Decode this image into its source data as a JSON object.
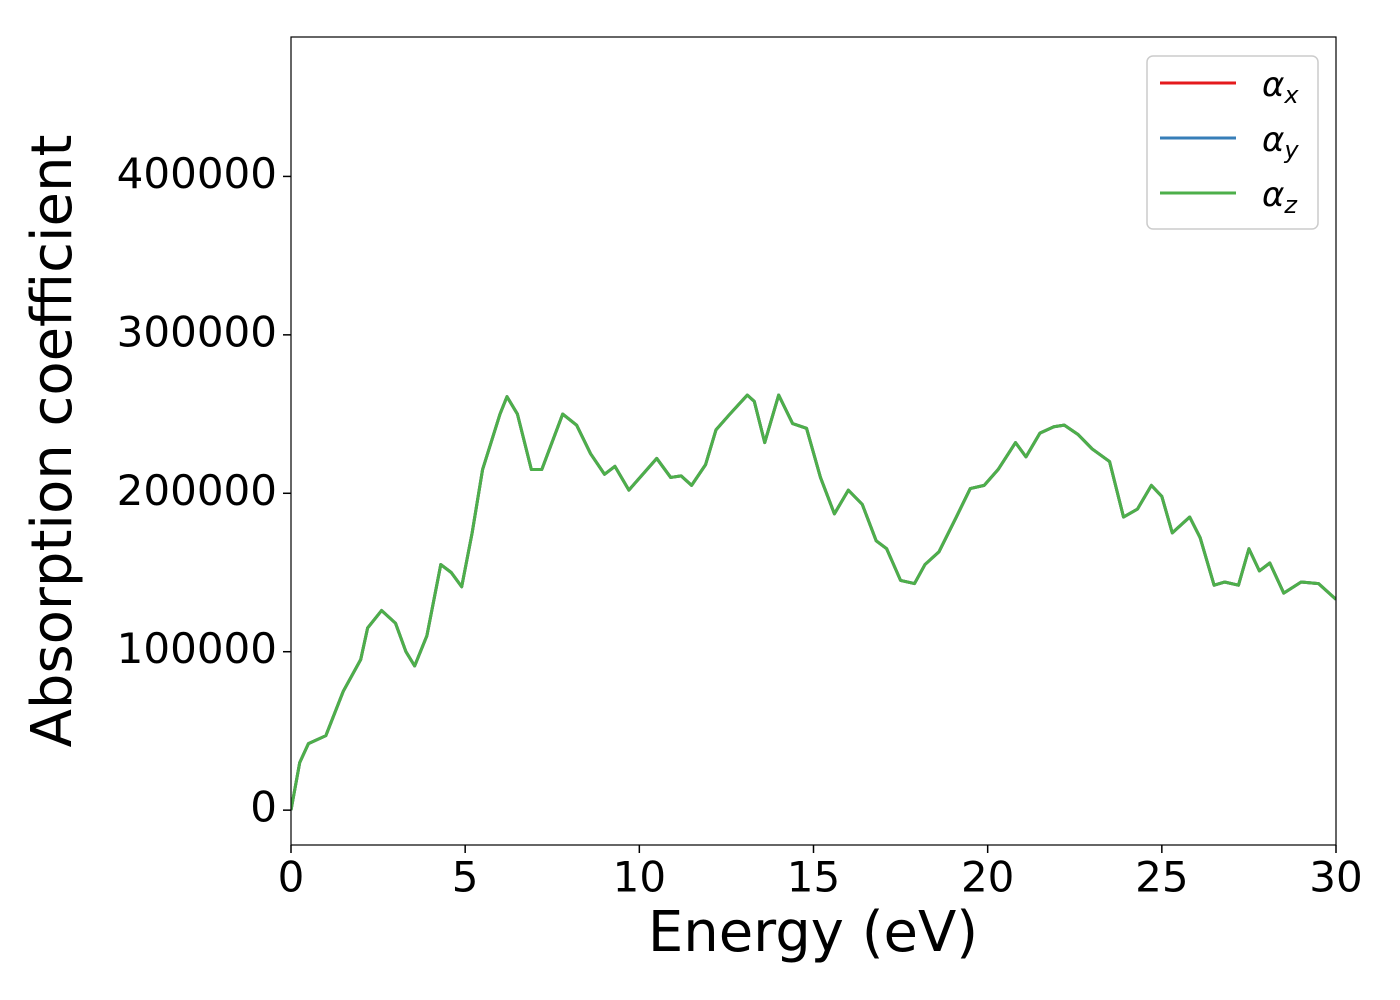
{
  "chart_data": {
    "type": "line",
    "xlabel": "Energy (eV)",
    "ylabel": "Absorption coefficient",
    "x": [
      0,
      0.25,
      0.5,
      1,
      1.5,
      2,
      2.2,
      2.6,
      3,
      3.3,
      3.55,
      3.9,
      4.3,
      4.6,
      4.9,
      5.2,
      5.5,
      6.0,
      6.2,
      6.5,
      6.9,
      7.2,
      7.8,
      8.2,
      8.6,
      9.0,
      9.3,
      9.7,
      10.1,
      10.5,
      10.9,
      11.2,
      11.5,
      11.9,
      12.2,
      12.6,
      13.1,
      13.3,
      13.6,
      14.0,
      14.4,
      14.8,
      15.2,
      15.6,
      16.0,
      16.4,
      16.8,
      17.1,
      17.5,
      17.9,
      18.2,
      18.6,
      19.1,
      19.5,
      19.9,
      20.3,
      20.8,
      21.1,
      21.5,
      21.9,
      22.2,
      22.6,
      23.0,
      23.5,
      23.9,
      24.3,
      24.7,
      25.0,
      25.3,
      25.8,
      26.1,
      26.5,
      26.8,
      27.2,
      27.5,
      27.8,
      28.1,
      28.5,
      29.0,
      29.5,
      30
    ],
    "series": [
      {
        "name": "α_x",
        "color": "#e41a1c",
        "values": [
          0,
          30000,
          42000,
          47000,
          75000,
          95000,
          115000,
          126000,
          118000,
          100000,
          91000,
          110000,
          155000,
          150000,
          141000,
          175000,
          215000,
          250000,
          261000,
          250000,
          215000,
          215000,
          250000,
          243000,
          225000,
          212000,
          217000,
          202000,
          212000,
          222000,
          210000,
          211000,
          205000,
          218000,
          240000,
          250000,
          262000,
          258000,
          232000,
          262000,
          244000,
          241000,
          210000,
          187000,
          202000,
          193000,
          170000,
          165000,
          145000,
          143000,
          155000,
          163000,
          185000,
          203000,
          205000,
          215000,
          232000,
          223000,
          238000,
          242000,
          243000,
          237000,
          228000,
          220000,
          185000,
          190000,
          205000,
          198000,
          175000,
          185000,
          172000,
          142000,
          144000,
          142000,
          165000,
          151000,
          156000,
          137000,
          144000,
          143000,
          133000
        ]
      },
      {
        "name": "α_y",
        "color": "#377eb8",
        "values": [
          0,
          30000,
          42000,
          47000,
          75000,
          95000,
          115000,
          126000,
          118000,
          100000,
          91000,
          110000,
          155000,
          150000,
          141000,
          175000,
          215000,
          250000,
          261000,
          250000,
          215000,
          215000,
          250000,
          243000,
          225000,
          212000,
          217000,
          202000,
          212000,
          222000,
          210000,
          211000,
          205000,
          218000,
          240000,
          250000,
          262000,
          258000,
          232000,
          262000,
          244000,
          241000,
          210000,
          187000,
          202000,
          193000,
          170000,
          165000,
          145000,
          143000,
          155000,
          163000,
          185000,
          203000,
          205000,
          215000,
          232000,
          223000,
          238000,
          242000,
          243000,
          237000,
          228000,
          220000,
          185000,
          190000,
          205000,
          198000,
          175000,
          185000,
          172000,
          142000,
          144000,
          142000,
          165000,
          151000,
          156000,
          137000,
          144000,
          143000,
          133000
        ]
      },
      {
        "name": "α_z",
        "color": "#4daf4a",
        "values": [
          0,
          30000,
          42000,
          47000,
          75000,
          95000,
          115000,
          126000,
          118000,
          100000,
          91000,
          110000,
          155000,
          150000,
          141000,
          175000,
          215000,
          250000,
          261000,
          250000,
          215000,
          215000,
          250000,
          243000,
          225000,
          212000,
          217000,
          202000,
          212000,
          222000,
          210000,
          211000,
          205000,
          218000,
          240000,
          250000,
          262000,
          258000,
          232000,
          262000,
          244000,
          241000,
          210000,
          187000,
          202000,
          193000,
          170000,
          165000,
          145000,
          143000,
          155000,
          163000,
          185000,
          203000,
          205000,
          215000,
          232000,
          223000,
          238000,
          242000,
          243000,
          237000,
          228000,
          220000,
          185000,
          190000,
          205000,
          198000,
          175000,
          185000,
          172000,
          142000,
          144000,
          142000,
          165000,
          151000,
          156000,
          137000,
          144000,
          143000,
          133000
        ]
      }
    ],
    "xlim": [
      0,
      30
    ],
    "xticks": [
      0,
      5,
      10,
      15,
      20,
      25,
      30
    ],
    "ylim": [
      -22000,
      488000
    ],
    "yticks": [
      0,
      100000,
      200000,
      300000,
      400000
    ],
    "grid": false,
    "legend": "upper right"
  }
}
